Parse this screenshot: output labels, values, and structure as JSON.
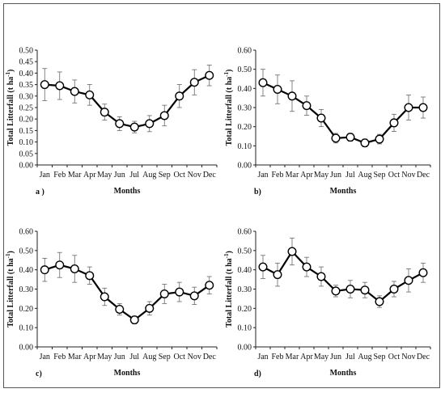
{
  "chart_data": [
    {
      "type": "line",
      "panel_label": "a )",
      "xlabel": "Months",
      "ylabel": "Total Litterfall (t ha",
      "ylabel_sup": "-1",
      "ylabel_end": ")",
      "categories": [
        "Jan",
        "Feb",
        "Mar",
        "Apr",
        "May",
        "Jun",
        "Jul",
        "Aug",
        "Sep",
        "Oct",
        "Nov",
        "Dec"
      ],
      "yticks": [
        "0.00",
        "0.05",
        "0.10",
        "0.15",
        "0.20",
        "0.25",
        "0.30",
        "0.35",
        "0.40",
        "0.45",
        "0.50"
      ],
      "ylim": [
        0,
        0.5
      ],
      "values": [
        0.35,
        0.345,
        0.32,
        0.305,
        0.23,
        0.18,
        0.165,
        0.18,
        0.215,
        0.3,
        0.36,
        0.39
      ],
      "errors": [
        0.07,
        0.06,
        0.05,
        0.045,
        0.035,
        0.03,
        0.025,
        0.035,
        0.045,
        0.05,
        0.055,
        0.045
      ],
      "color": "#000000",
      "grid": false
    },
    {
      "type": "line",
      "panel_label": "b)",
      "xlabel": "Months",
      "ylabel": "Total Litterfall (t ha",
      "ylabel_sup": "-1",
      "ylabel_end": ")",
      "categories": [
        "Jan",
        "Feb",
        "Mar",
        "Apr",
        "May",
        "Jun",
        "Jul",
        "Aug",
        "Sep",
        "Oct",
        "Nov",
        "Dec"
      ],
      "yticks": [
        "0.00",
        "0.10",
        "0.20",
        "0.30",
        "0.40",
        "0.50",
        "0.60"
      ],
      "ylim": [
        0,
        0.6
      ],
      "values": [
        0.43,
        0.395,
        0.36,
        0.31,
        0.245,
        0.14,
        0.145,
        0.115,
        0.135,
        0.22,
        0.3,
        0.3
      ],
      "errors": [
        0.07,
        0.075,
        0.08,
        0.05,
        0.045,
        0.025,
        0.02,
        0.02,
        0.025,
        0.045,
        0.065,
        0.055
      ],
      "color": "#000000",
      "grid": false
    },
    {
      "type": "line",
      "panel_label": "c)",
      "xlabel": "Months",
      "ylabel": "Total Litterfall (t ha",
      "ylabel_sup": "-1",
      "ylabel_end": ")",
      "categories": [
        "Jan",
        "Feb",
        "Mar",
        "Apr",
        "May",
        "Jun",
        "Jul",
        "Aug",
        "Sep",
        "Oct",
        "Nov",
        "Dec"
      ],
      "yticks": [
        "0.00",
        "0.10",
        "0.20",
        "0.30",
        "0.40",
        "0.50",
        "0.60"
      ],
      "ylim": [
        0,
        0.6
      ],
      "values": [
        0.4,
        0.425,
        0.405,
        0.37,
        0.26,
        0.195,
        0.14,
        0.2,
        0.275,
        0.285,
        0.265,
        0.32
      ],
      "errors": [
        0.06,
        0.065,
        0.07,
        0.045,
        0.045,
        0.03,
        0.02,
        0.035,
        0.05,
        0.05,
        0.045,
        0.045
      ],
      "color": "#000000",
      "grid": false
    },
    {
      "type": "line",
      "panel_label": "d)",
      "xlabel": "Months",
      "ylabel": "Total Litterfall (t ha",
      "ylabel_sup": "-1",
      "ylabel_end": ")",
      "categories": [
        "Jan",
        "Feb",
        "Mar",
        "Apr",
        "May",
        "Jun",
        "Jul",
        "Aug",
        "Sep",
        "Oct",
        "Nov",
        "Dec"
      ],
      "yticks": [
        "0.00",
        "0.10",
        "0.20",
        "0.30",
        "0.40",
        "0.50",
        "0.60"
      ],
      "ylim": [
        0,
        0.6
      ],
      "values": [
        0.415,
        0.375,
        0.495,
        0.415,
        0.365,
        0.29,
        0.3,
        0.295,
        0.235,
        0.3,
        0.345,
        0.385
      ],
      "errors": [
        0.06,
        0.06,
        0.07,
        0.05,
        0.05,
        0.03,
        0.045,
        0.04,
        0.03,
        0.04,
        0.06,
        0.05
      ],
      "color": "#000000",
      "grid": false
    }
  ]
}
